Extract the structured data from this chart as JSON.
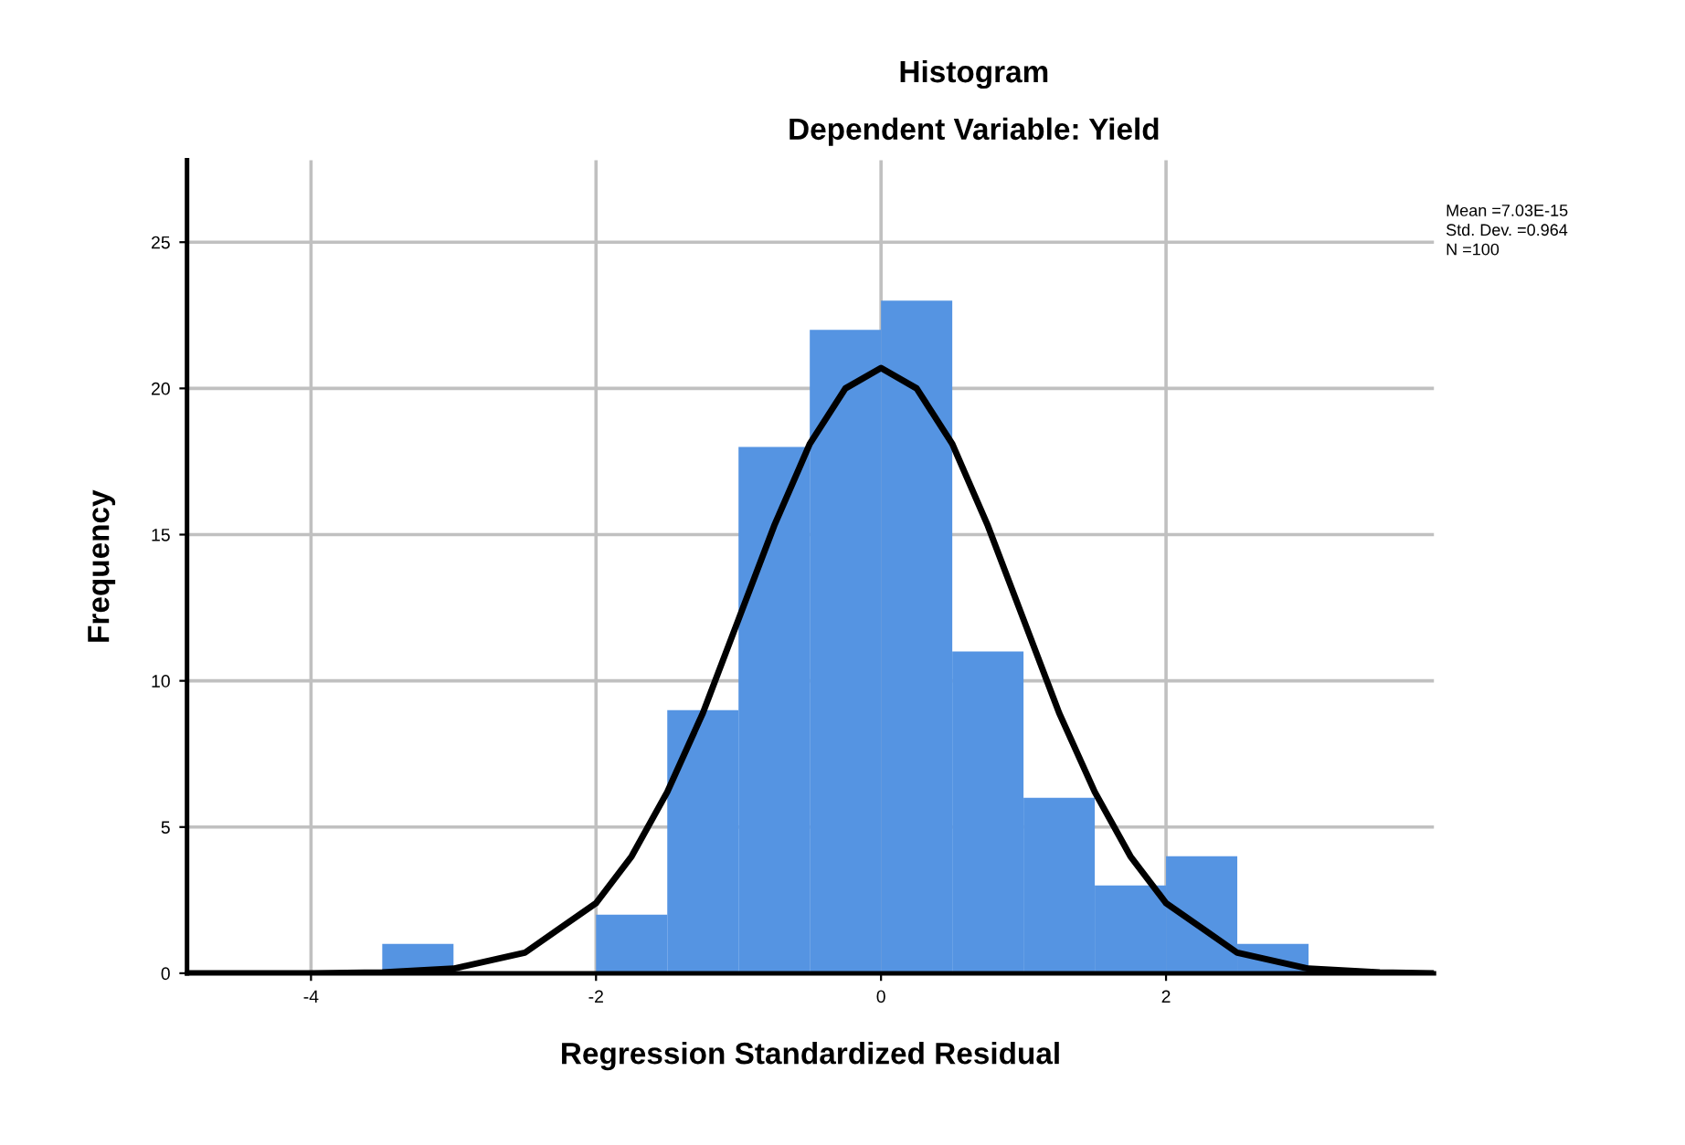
{
  "chart_data": {
    "type": "histogram",
    "title": "Histogram",
    "subtitle": "Dependent Variable: Yield",
    "xlabel": "Regression Standardized Residual",
    "ylabel": "Frequency",
    "bins": [
      -3.5,
      -3.0,
      -2.5,
      -2.0,
      -1.5,
      -1.0,
      -0.5,
      0.0,
      0.5,
      1.0,
      1.5,
      2.0,
      2.5,
      3.0
    ],
    "values": [
      1,
      0,
      0,
      2,
      9,
      18,
      22,
      23,
      11,
      6,
      3,
      4,
      1
    ],
    "color": "#5594e2",
    "series": [
      {
        "type": "line",
        "color": "#000000",
        "x": [
          -4.87,
          -4.0,
          -3.5,
          -3.0,
          -2.5,
          -2.0,
          -1.75,
          -1.5,
          -1.25,
          -1.0,
          -0.75,
          -0.5,
          -0.25,
          0.0,
          0.25,
          0.5,
          0.75,
          1.0,
          1.25,
          1.5,
          1.75,
          2.0,
          2.5,
          3.0,
          3.5,
          3.88
        ],
        "values": [
          0,
          0,
          0.03,
          0.16,
          0.7,
          2.4,
          4.0,
          6.2,
          8.9,
          12.1,
          15.3,
          18.1,
          20.0,
          20.7,
          20.0,
          18.1,
          15.3,
          12.1,
          8.9,
          6.2,
          4.0,
          2.4,
          0.7,
          0.16,
          0.03,
          0
        ]
      }
    ],
    "xlim": [
      -4.87,
      3.88
    ],
    "ylim": [
      0,
      27.8
    ],
    "xticks": [
      -4,
      -2,
      0,
      2
    ],
    "yticks": [
      0,
      5,
      10,
      15,
      20,
      25
    ],
    "grid": true,
    "legend": false,
    "annotations": [
      "Mean =7.03E-15",
      "Std. Dev. =0.964",
      "N =100"
    ]
  }
}
